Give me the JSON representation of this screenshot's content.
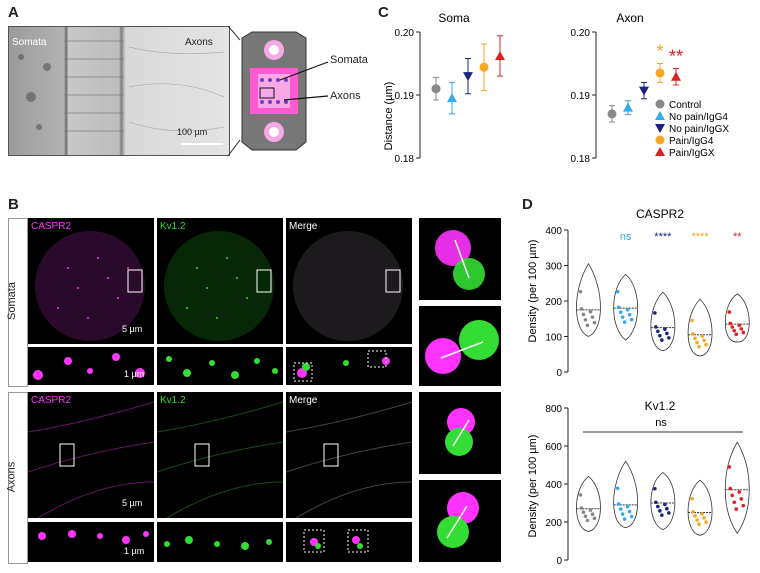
{
  "panels": {
    "A": {
      "label": "A",
      "left_label": "Somata",
      "right_label": "Axons",
      "scale_bar": "100 µm",
      "schematic_somata": "Somata",
      "schematic_axons": "Axons"
    },
    "B": {
      "label": "B",
      "rows": [
        "Somata",
        "Axons"
      ],
      "channels": {
        "caspr2": "CASPR2",
        "kv12": "Kv1.2",
        "merge": "Merge"
      },
      "scale_large": "5 µm",
      "scale_small": "1 µm",
      "colors": {
        "caspr2": "#ff33ff",
        "kv12": "#33dd33"
      }
    },
    "C": {
      "label": "C",
      "ylabel": "Distance (µm)",
      "titles": [
        "Soma",
        "Axon"
      ],
      "yticks": [
        "0.18",
        "0.19",
        "0.20"
      ],
      "significance_axon": [
        "*",
        "**"
      ],
      "legend": [
        "Control",
        "No pain/IgG4",
        "No pain/IgGX",
        "Pain/IgG4",
        "Pain/IgGX"
      ]
    },
    "D": {
      "label": "D",
      "ylabel": "Density (per 100 µm)",
      "titles": [
        "CASPR2",
        "Kv1.2"
      ],
      "yticks_top": [
        "0",
        "100",
        "200",
        "300",
        "400"
      ],
      "yticks_bottom": [
        "0",
        "200",
        "400",
        "600",
        "800"
      ],
      "significance_top": [
        "ns",
        "****",
        "****",
        "**"
      ],
      "significance_bottom": "ns"
    }
  },
  "colors": {
    "control": "#888888",
    "nopain_igg4": "#33aaee",
    "nopain_iggx": "#1a237e",
    "pain_igg4": "#f5a623",
    "pain_iggx": "#e02020"
  },
  "chart_data": [
    {
      "type": "scatter",
      "title": "Soma",
      "ylabel": "Distance (µm)",
      "ylim": [
        0.18,
        0.2
      ],
      "categories": [
        "Control",
        "No pain/IgG4",
        "No pain/IgGX",
        "Pain/IgG4",
        "Pain/IgGX"
      ],
      "values": [
        0.191,
        0.1895,
        0.193,
        0.1944,
        0.1962
      ],
      "error": [
        0.0018,
        0.0025,
        0.0028,
        0.0037,
        0.0032
      ]
    },
    {
      "type": "scatter",
      "title": "Axon",
      "ylim": [
        0.18,
        0.2
      ],
      "categories": [
        "Control",
        "No pain/IgG4",
        "No pain/IgGX",
        "Pain/IgG4",
        "Pain/IgGX"
      ],
      "values": [
        0.187,
        0.188,
        0.1907,
        0.1935,
        0.1929
      ],
      "error": [
        0.0013,
        0.0011,
        0.0013,
        0.0015,
        0.0013
      ],
      "significance": [
        "",
        "",
        "",
        "*",
        "**"
      ]
    },
    {
      "type": "violin",
      "title": "CASPR2",
      "ylabel": "Density (per 100 µm)",
      "ylim": [
        0,
        400
      ],
      "categories": [
        "Control",
        "No pain/IgG4",
        "No pain/IgGX",
        "Pain/IgG4",
        "Pain/IgGX"
      ],
      "medians": [
        175,
        180,
        125,
        105,
        135
      ],
      "min": [
        100,
        90,
        60,
        45,
        85
      ],
      "max": [
        305,
        275,
        225,
        205,
        220
      ],
      "significance": [
        "",
        "ns",
        "****",
        "****",
        "**"
      ]
    },
    {
      "type": "violin",
      "title": "Kv1.2",
      "ylabel": "Density (per 100 µm)",
      "ylim": [
        0,
        800
      ],
      "categories": [
        "Control",
        "No pain/IgG4",
        "No pain/IgGX",
        "Pain/IgG4",
        "Pain/IgGX"
      ],
      "medians": [
        270,
        290,
        300,
        250,
        370
      ],
      "min": [
        150,
        170,
        160,
        130,
        140
      ],
      "max": [
        440,
        520,
        460,
        420,
        620
      ],
      "significance": "ns"
    }
  ]
}
